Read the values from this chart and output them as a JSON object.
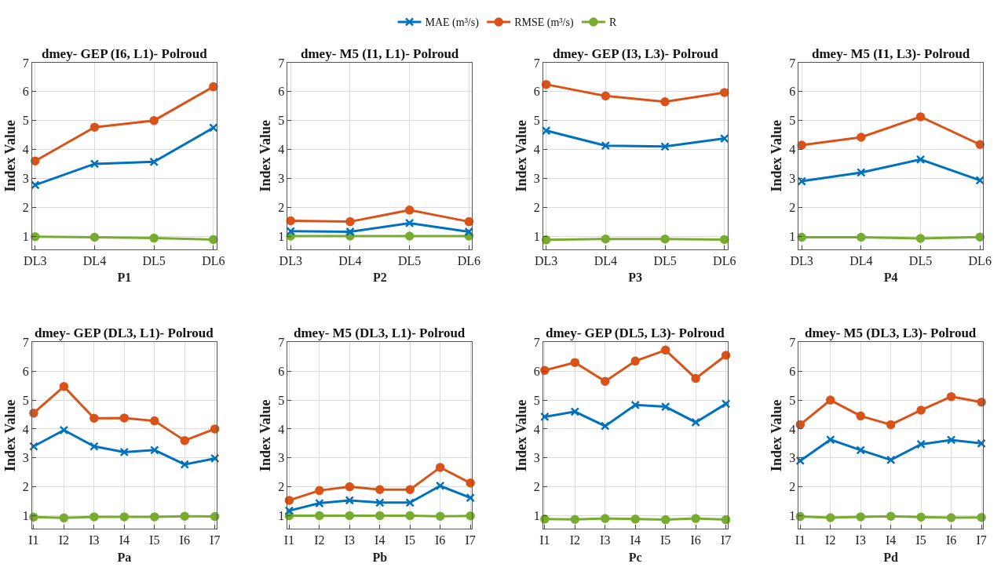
{
  "chart_data": [
    {
      "type": "line",
      "title": "dmey- GEP (I6, L1)- Polroud",
      "xlabel": "P1",
      "ylabel": "Index Value",
      "categories": [
        "DL3",
        "DL4",
        "DL5",
        "DL6"
      ],
      "ylim": [
        0.55,
        7
      ],
      "yticks": [
        1,
        2,
        3,
        4,
        5,
        6,
        7
      ],
      "grid": true,
      "legend": "top",
      "series": [
        {
          "name": "MAE (m³/s)",
          "color": "#0072bd",
          "marker": "cross",
          "values": [
            2.77,
            3.5,
            3.57,
            4.75
          ]
        },
        {
          "name": "RMSE (m³/s)",
          "color": "#d95319",
          "marker": "circle",
          "values": [
            3.6,
            4.77,
            5.0,
            6.17
          ]
        },
        {
          "name": "R",
          "color": "#77ac30",
          "marker": "circle",
          "values": [
            0.98,
            0.96,
            0.93,
            0.88
          ]
        }
      ]
    },
    {
      "type": "line",
      "title": "dmey- M5 (I1, L1)- Polroud",
      "xlabel": "P2",
      "ylabel": "Index Value",
      "categories": [
        "DL3",
        "DL4",
        "DL5",
        "DL6"
      ],
      "ylim": [
        0.55,
        7
      ],
      "yticks": [
        1,
        2,
        3,
        4,
        5,
        6,
        7
      ],
      "grid": true,
      "series": [
        {
          "color": "#0072bd",
          "marker": "cross",
          "values": [
            1.17,
            1.15,
            1.45,
            1.15
          ]
        },
        {
          "color": "#d95319",
          "marker": "circle",
          "values": [
            1.53,
            1.5,
            1.9,
            1.5
          ]
        },
        {
          "color": "#77ac30",
          "marker": "circle",
          "values": [
            1.0,
            1.0,
            1.0,
            1.0
          ]
        }
      ]
    },
    {
      "type": "line",
      "title": "dmey- GEP (I3, L3)- Polroud",
      "xlabel": "P3",
      "ylabel": "Index Value",
      "categories": [
        "DL3",
        "DL4",
        "DL5",
        "DL6"
      ],
      "ylim": [
        0.55,
        7
      ],
      "yticks": [
        1,
        2,
        3,
        4,
        5,
        6,
        7
      ],
      "grid": true,
      "series": [
        {
          "color": "#0072bd",
          "marker": "cross",
          "values": [
            4.65,
            4.13,
            4.1,
            4.38
          ]
        },
        {
          "color": "#d95319",
          "marker": "circle",
          "values": [
            6.25,
            5.85,
            5.65,
            5.97
          ]
        },
        {
          "color": "#77ac30",
          "marker": "circle",
          "values": [
            0.87,
            0.9,
            0.9,
            0.88
          ]
        }
      ]
    },
    {
      "type": "line",
      "title": "dmey- M5 (I1, L3)- Polroud",
      "xlabel": "P4",
      "ylabel": "Index Value",
      "categories": [
        "DL3",
        "DL4",
        "DL5",
        "DL6"
      ],
      "ylim": [
        0.55,
        7
      ],
      "yticks": [
        1,
        2,
        3,
        4,
        5,
        6,
        7
      ],
      "grid": true,
      "series": [
        {
          "color": "#0072bd",
          "marker": "cross",
          "values": [
            2.9,
            3.2,
            3.65,
            2.93
          ]
        },
        {
          "color": "#d95319",
          "marker": "circle",
          "values": [
            4.15,
            4.42,
            5.13,
            4.17
          ]
        },
        {
          "color": "#77ac30",
          "marker": "circle",
          "values": [
            0.96,
            0.96,
            0.92,
            0.97
          ]
        }
      ]
    },
    {
      "type": "line",
      "title": "dmey- GEP (DL3, L1)- Polroud",
      "xlabel": "Pa",
      "ylabel": "Index Value",
      "categories": [
        "I1",
        "I2",
        "I3",
        "I4",
        "I5",
        "I6",
        "I7"
      ],
      "ylim": [
        0.55,
        7
      ],
      "yticks": [
        1,
        2,
        3,
        4,
        5,
        6,
        7
      ],
      "grid": true,
      "series": [
        {
          "color": "#0072bd",
          "marker": "cross",
          "values": [
            3.4,
            3.96,
            3.4,
            3.2,
            3.27,
            2.77,
            2.98
          ]
        },
        {
          "color": "#d95319",
          "marker": "circle",
          "values": [
            4.55,
            5.47,
            4.37,
            4.38,
            4.28,
            3.6,
            4.0
          ]
        },
        {
          "color": "#77ac30",
          "marker": "circle",
          "values": [
            0.95,
            0.92,
            0.96,
            0.96,
            0.96,
            0.98,
            0.97
          ]
        }
      ]
    },
    {
      "type": "line",
      "title": "dmey- M5 (DL3, L1)- Polroud",
      "xlabel": "Pb",
      "ylabel": "Index Value",
      "categories": [
        "I1",
        "I2",
        "I3",
        "I4",
        "I5",
        "I6",
        "I7"
      ],
      "ylim": [
        0.55,
        7
      ],
      "yticks": [
        1,
        2,
        3,
        4,
        5,
        6,
        7
      ],
      "grid": true,
      "series": [
        {
          "color": "#0072bd",
          "marker": "cross",
          "values": [
            1.17,
            1.43,
            1.53,
            1.45,
            1.45,
            2.03,
            1.62
          ]
        },
        {
          "color": "#d95319",
          "marker": "circle",
          "values": [
            1.53,
            1.87,
            2.0,
            1.9,
            1.9,
            2.67,
            2.13
          ]
        },
        {
          "color": "#77ac30",
          "marker": "circle",
          "values": [
            1.0,
            1.0,
            1.0,
            1.0,
            1.0,
            0.98,
            0.99
          ]
        }
      ]
    },
    {
      "type": "line",
      "title": "dmey- GEP (DL5, L3)- Polroud",
      "xlabel": "Pc",
      "ylabel": "Index Value",
      "categories": [
        "I1",
        "I2",
        "I3",
        "I4",
        "I5",
        "I6",
        "I7"
      ],
      "ylim": [
        0.55,
        7
      ],
      "yticks": [
        1,
        2,
        3,
        4,
        5,
        6,
        7
      ],
      "grid": true,
      "series": [
        {
          "color": "#0072bd",
          "marker": "cross",
          "values": [
            4.42,
            4.6,
            4.1,
            4.83,
            4.77,
            4.23,
            4.87
          ]
        },
        {
          "color": "#d95319",
          "marker": "circle",
          "values": [
            6.03,
            6.3,
            5.65,
            6.35,
            6.73,
            5.75,
            6.55
          ]
        },
        {
          "color": "#77ac30",
          "marker": "circle",
          "values": [
            0.88,
            0.87,
            0.9,
            0.88,
            0.86,
            0.9,
            0.86
          ]
        }
      ]
    },
    {
      "type": "line",
      "title": "dmey- M5 (DL3, L3)- Polroud",
      "xlabel": "Pd",
      "ylabel": "Index Value",
      "categories": [
        "I1",
        "I2",
        "I3",
        "I4",
        "I5",
        "I6",
        "I7"
      ],
      "ylim": [
        0.55,
        7
      ],
      "yticks": [
        1,
        2,
        3,
        4,
        5,
        6,
        7
      ],
      "grid": true,
      "series": [
        {
          "color": "#0072bd",
          "marker": "cross",
          "values": [
            2.9,
            3.63,
            3.27,
            2.93,
            3.47,
            3.62,
            3.5
          ]
        },
        {
          "color": "#d95319",
          "marker": "circle",
          "values": [
            4.15,
            5.0,
            4.45,
            4.15,
            4.65,
            5.12,
            4.93
          ]
        },
        {
          "color": "#77ac30",
          "marker": "circle",
          "values": [
            0.97,
            0.93,
            0.96,
            0.98,
            0.95,
            0.93,
            0.94
          ]
        }
      ]
    }
  ]
}
